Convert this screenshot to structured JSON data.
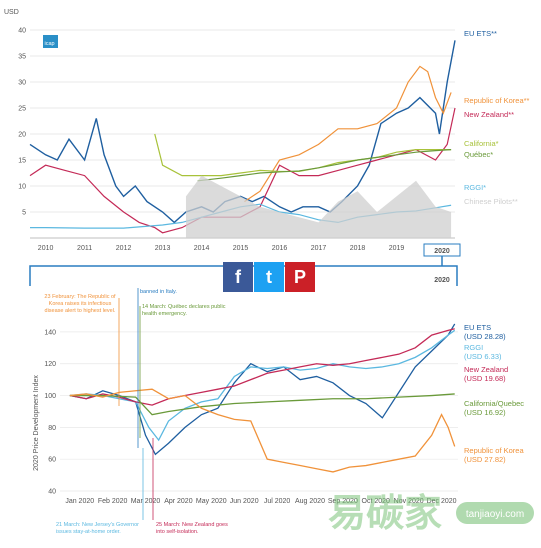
{
  "chart_data": [
    {
      "type": "line",
      "ylabel": "USD",
      "ylim": [
        0,
        40
      ],
      "yticks": [
        "5",
        "10",
        "15",
        "20",
        "25",
        "30",
        "35",
        "40"
      ],
      "xticks": [
        "2010",
        "2011",
        "2012",
        "2013",
        "2014",
        "2015",
        "2016",
        "2017",
        "2018",
        "2019",
        "2020"
      ],
      "highlight": "2020",
      "logo_text": "icap",
      "series": [
        {
          "name": "EU ETS**",
          "color": "#1f5fa0",
          "x": [
            2009.6,
            2010,
            2010.3,
            2010.6,
            2011,
            2011.3,
            2011.5,
            2011.8,
            2012,
            2012.3,
            2012.6,
            2013,
            2013.3,
            2013.6,
            2014,
            2014.3,
            2014.6,
            2015,
            2015.3,
            2015.6,
            2016,
            2016.3,
            2016.6,
            2017,
            2017.3,
            2017.6,
            2018,
            2018.3,
            2018.6,
            2019,
            2019.3,
            2019.6,
            2020,
            2020.1,
            2020.3,
            2020.5
          ],
          "y": [
            18,
            16,
            15,
            19,
            15,
            23,
            16,
            10,
            8,
            10,
            7,
            5,
            3,
            5,
            6,
            5,
            7,
            8,
            7,
            8,
            6,
            5,
            6,
            6,
            5,
            7,
            10,
            14,
            22,
            24,
            25,
            27,
            24,
            20,
            30,
            38
          ]
        },
        {
          "name": "Republic of Korea**",
          "color": "#f0923a",
          "x": [
            2015.1,
            2015.5,
            2016,
            2016.5,
            2017,
            2017.5,
            2018,
            2018.5,
            2019,
            2019.3,
            2019.6,
            2019.8,
            2020,
            2020.2,
            2020.4
          ],
          "y": [
            7,
            9,
            15,
            16,
            18,
            21,
            21,
            22,
            25,
            30,
            33,
            32,
            27,
            24,
            28
          ]
        },
        {
          "name": "New Zealand**",
          "color": "#c42a57",
          "x": [
            2009.6,
            2010,
            2010.5,
            2011,
            2011.5,
            2012,
            2012.4,
            2012.8,
            2013,
            2013.5,
            2014,
            2014.5,
            2015,
            2015.5,
            2016,
            2016.5,
            2017,
            2017.5,
            2018,
            2018.5,
            2019,
            2019.5,
            2020,
            2020.3,
            2020.5
          ],
          "y": [
            12,
            14,
            13,
            12,
            8,
            5,
            3,
            2,
            1,
            2,
            4,
            4,
            4,
            6,
            14,
            12,
            12,
            13,
            14,
            15,
            16,
            17,
            15,
            18,
            25
          ]
        },
        {
          "name": "California*",
          "color": "#a8c23a",
          "x": [
            2012.8,
            2013,
            2013.5,
            2014,
            2014.5,
            2015,
            2015.5,
            2016,
            2016.5,
            2017,
            2017.5,
            2018,
            2018.5,
            2019,
            2019.5,
            2020,
            2020.4
          ],
          "y": [
            20,
            14,
            12,
            12,
            12,
            12.5,
            13,
            12.8,
            12.8,
            13.5,
            14.5,
            15,
            15.5,
            16.5,
            17,
            17,
            17
          ]
        },
        {
          "name": "Québec*",
          "color": "#6a9a3a",
          "x": [
            2013.9,
            2014.5,
            2015,
            2015.5,
            2016,
            2016.5,
            2017,
            2017.5,
            2018,
            2018.5,
            2019,
            2019.5,
            2020,
            2020.4
          ],
          "y": [
            11,
            11.5,
            12,
            12.5,
            12.7,
            12.9,
            13.5,
            14.2,
            15,
            15.5,
            16,
            16.5,
            16.8,
            17
          ]
        },
        {
          "name": "RGGI*",
          "color": "#5bb8e0",
          "x": [
            2009.6,
            2010,
            2011,
            2012,
            2013,
            2013.5,
            2014,
            2014.5,
            2015,
            2015.5,
            2016,
            2016.5,
            2017,
            2017.5,
            2018,
            2018.5,
            2019,
            2019.5,
            2020,
            2020.4
          ],
          "y": [
            2,
            2,
            1.9,
            1.9,
            2.5,
            3,
            4,
            5,
            6,
            6.5,
            5,
            4.5,
            3.5,
            3,
            4,
            4.5,
            5,
            5.2,
            5.8,
            6.3
          ]
        },
        {
          "name": "Chinese Pilots**",
          "color": "#cfcfcf",
          "x": [
            2013.6,
            2014,
            2014.5,
            2015,
            2015.5,
            2016,
            2016.5,
            2017,
            2017.5,
            2018,
            2018.5,
            2019,
            2019.5,
            2020,
            2020.4
          ],
          "y": [
            8,
            12,
            10,
            8,
            6,
            5,
            4,
            3,
            7,
            9,
            5,
            8,
            11,
            6,
            5
          ]
        }
      ]
    },
    {
      "type": "line",
      "ylabel": "2020 Price Development Index",
      "ylim": [
        40,
        150
      ],
      "yticks": [
        "40",
        "60",
        "80",
        "100",
        "120",
        "140"
      ],
      "xticks": [
        "Jan 2020",
        "Feb 2020",
        "Mar 2020",
        "Apr 2020",
        "May 2020",
        "Jun 2020",
        "Jul 2020",
        "Aug 2020",
        "Sep 2020",
        "Oct 2020",
        "Nov 2020",
        "Dec 2020"
      ],
      "series": [
        {
          "name": "EU ETS",
          "sublabel": "(USD 28.28)",
          "color": "#1f5fa0",
          "x": [
            0,
            0.5,
            1,
            1.5,
            2,
            2.3,
            2.6,
            3,
            3.5,
            4,
            4.5,
            5,
            5.5,
            6,
            6.5,
            7,
            7.5,
            8,
            8.5,
            9,
            9.5,
            10,
            10.5,
            11,
            11.5,
            11.7
          ],
          "y": [
            100,
            98,
            103,
            100,
            96,
            75,
            63,
            70,
            80,
            88,
            92,
            108,
            120,
            115,
            118,
            110,
            112,
            108,
            100,
            95,
            86,
            102,
            118,
            128,
            138,
            145
          ]
        },
        {
          "name": "RGGI",
          "sublabel": "(USD 6.33)",
          "color": "#5bb8e0",
          "x": [
            0,
            0.5,
            1,
            1.5,
            2,
            2.4,
            2.7,
            3,
            3.5,
            4,
            4.5,
            5,
            5.5,
            6,
            6.5,
            7,
            7.5,
            8,
            8.5,
            9,
            9.5,
            10,
            10.5,
            11,
            11.5,
            11.7
          ],
          "y": [
            100,
            101,
            100,
            98,
            96,
            80,
            72,
            84,
            92,
            96,
            98,
            112,
            118,
            117,
            118,
            116,
            117,
            120,
            118,
            117,
            118,
            120,
            124,
            130,
            138,
            141
          ]
        },
        {
          "name": "New Zealand",
          "sublabel": "(USD 19.68)",
          "color": "#c42a57",
          "x": [
            0,
            0.5,
            1,
            1.5,
            2,
            2.5,
            3,
            3.5,
            4,
            4.5,
            5,
            5.5,
            6,
            6.5,
            7,
            7.5,
            8,
            8.5,
            9,
            9.5,
            10,
            10.5,
            11,
            11.5,
            11.7
          ],
          "y": [
            100,
            98,
            101,
            99,
            96,
            94,
            98,
            100,
            102,
            104,
            106,
            110,
            114,
            116,
            118,
            120,
            119,
            120,
            122,
            124,
            126,
            130,
            138,
            141,
            142
          ]
        },
        {
          "name": "California/Quebec",
          "sublabel": "(USD 16.92)",
          "color": "#6a9a3a",
          "x": [
            0,
            1,
            2,
            2.5,
            3,
            4,
            5,
            6,
            7,
            8,
            9,
            10,
            11,
            11.7
          ],
          "y": [
            100,
            100,
            99,
            88,
            90,
            93,
            95,
            96,
            97,
            98,
            98,
            99,
            100,
            101
          ]
        },
        {
          "name": "Republic of Korea",
          "sublabel": "(USD 27.82)",
          "color": "#f0923a",
          "x": [
            0,
            0.5,
            1,
            1.5,
            2,
            2.5,
            3,
            3.5,
            4,
            4.5,
            5,
            5.5,
            6,
            6.5,
            7,
            7.5,
            8,
            8.5,
            9,
            9.5,
            10,
            10.5,
            11,
            11.3,
            11.5,
            11.7
          ],
          "y": [
            100,
            101,
            99,
            102,
            103,
            104,
            98,
            100,
            92,
            88,
            85,
            84,
            60,
            58,
            56,
            54,
            52,
            55,
            56,
            58,
            60,
            62,
            75,
            88,
            80,
            68
          ]
        }
      ],
      "annotations": {
        "korea": "23 February: The Republic of Korea raises its infectious disease alert to highest level.",
        "italy": "10 March: Non-essential movement banned in Italy.",
        "quebec": "14 March: Québec declares public health emergency.",
        "nj": "21 March: New Jersey's Governor issues stay-at-home order.",
        "nz": "25 March: New Zealand goes into self-isolation."
      }
    }
  ],
  "share_buttons": {
    "facebook": "f",
    "twitter": "t",
    "pinterest": "P"
  },
  "watermark": {
    "cn": "易碳家",
    "domain": "tanjiaoyi.com"
  },
  "colors": {
    "eu": "#1f5fa0",
    "korea": "#f0923a",
    "nz": "#c42a57",
    "california": "#a8c23a",
    "quebec": "#6a9a3a",
    "rggi": "#5bb8e0",
    "china": "#cfcfcf",
    "nav": "#2a7dc1"
  }
}
